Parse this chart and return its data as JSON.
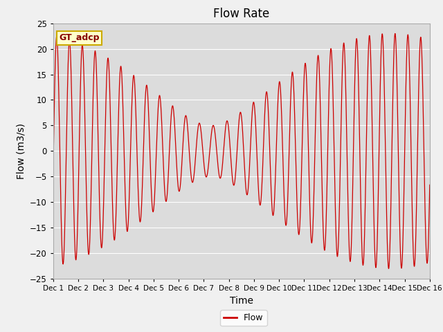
{
  "title": "Flow Rate",
  "xlabel": "Time",
  "ylabel": "Flow (m3/s)",
  "ylim": [
    -25,
    25
  ],
  "xlim_days": [
    1,
    16
  ],
  "yticks": [
    -25,
    -20,
    -15,
    -10,
    -5,
    0,
    5,
    10,
    15,
    20,
    25
  ],
  "xtick_labels": [
    "Dec 1",
    "Dec 2",
    "Dec 3",
    "Dec 4",
    "Dec 5",
    "Dec 6",
    "Dec 7",
    "Dec 8",
    "Dec 9",
    "Dec 10",
    "Dec 11",
    "Dec 12",
    "Dec 13",
    "Dec 14",
    "Dec 15",
    "Dec 16"
  ],
  "line_color": "#cc0000",
  "background_color": "#dcdcdc",
  "figure_background": "#f0f0f0",
  "annotation_text": "GT_adcp",
  "annotation_bg": "#ffffcc",
  "annotation_border": "#ccaa00",
  "legend_label": "Flow",
  "title_fontsize": 12,
  "axis_label_fontsize": 10
}
